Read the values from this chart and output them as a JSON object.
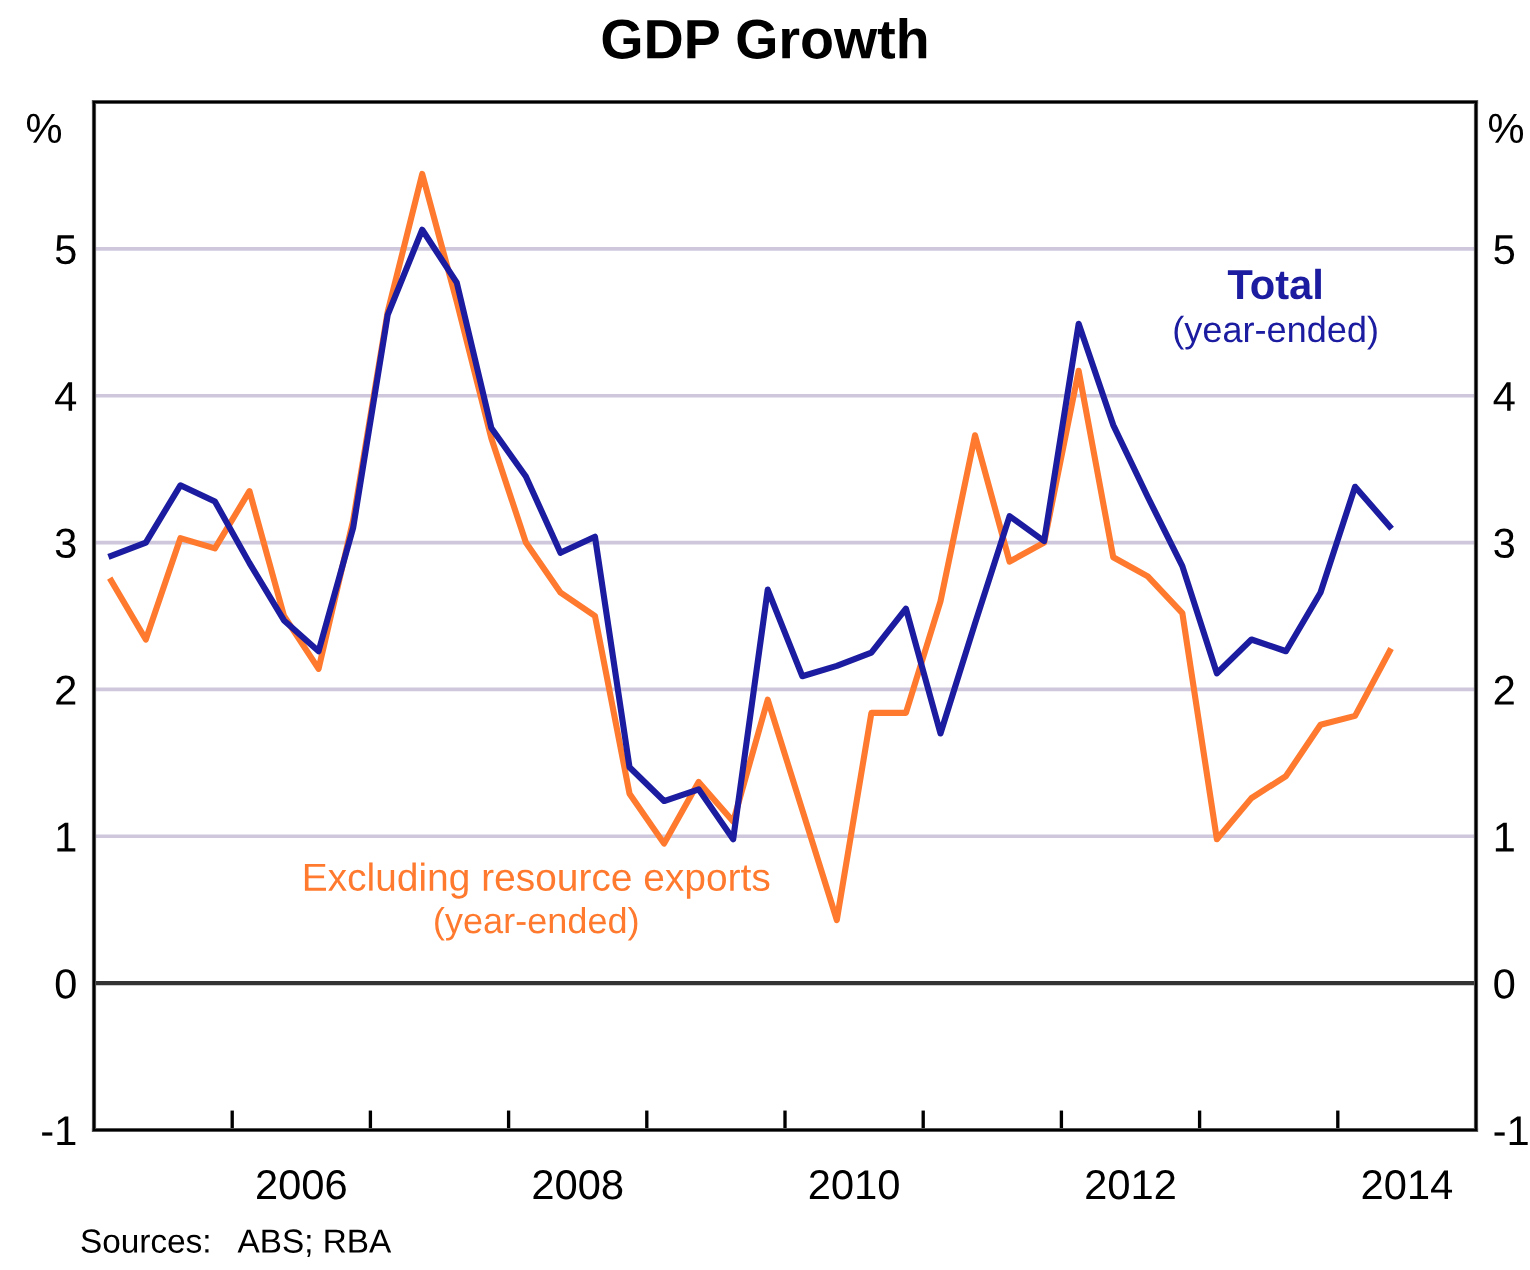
{
  "chart_data": {
    "type": "line",
    "title": "GDP Growth",
    "x": [
      2005.125,
      2005.375,
      2005.625,
      2005.875,
      2006.125,
      2006.375,
      2006.625,
      2006.875,
      2007.125,
      2007.375,
      2007.625,
      2007.875,
      2008.125,
      2008.375,
      2008.625,
      2008.875,
      2009.125,
      2009.375,
      2009.625,
      2009.875,
      2010.125,
      2010.375,
      2010.625,
      2010.875,
      2011.125,
      2011.375,
      2011.625,
      2011.875,
      2012.125,
      2012.375,
      2012.625,
      2012.875,
      2013.125,
      2013.375,
      2013.625,
      2013.875,
      2014.125,
      2014.375
    ],
    "series": [
      {
        "name": "Total\n(year-ended)",
        "color": "#1c1ca0",
        "values": [
          2.91,
          3.0,
          3.39,
          3.28,
          2.86,
          2.47,
          2.26,
          3.1,
          4.55,
          5.13,
          4.77,
          3.78,
          3.45,
          2.93,
          3.04,
          1.47,
          1.24,
          1.32,
          0.98,
          2.68,
          2.09,
          2.16,
          2.25,
          2.55,
          1.7,
          2.45,
          3.18,
          3.01,
          4.49,
          3.8,
          3.31,
          2.84,
          2.11,
          2.34,
          2.26,
          2.66,
          3.38,
          3.11
        ]
      },
      {
        "name": "Excluding resource exports\n(year-ended)",
        "color": "#ff7a2e",
        "values": [
          2.74,
          2.34,
          3.03,
          2.96,
          3.35,
          2.5,
          2.14,
          3.15,
          4.57,
          5.51,
          4.64,
          3.71,
          3.0,
          2.66,
          2.5,
          1.29,
          0.95,
          1.37,
          1.1,
          1.93,
          1.18,
          0.43,
          1.84,
          1.84,
          2.6,
          3.73,
          2.87,
          3.0,
          4.17,
          2.9,
          2.77,
          2.52,
          0.98,
          1.26,
          1.41,
          1.76,
          1.82,
          2.26
        ]
      }
    ],
    "xlim": [
      2005,
      2015
    ],
    "xticks": [
      {
        "value": 2005,
        "label": null
      },
      {
        "value": 2006,
        "label": null
      },
      {
        "value": 2007,
        "label": null
      },
      {
        "value": 2008,
        "label": null
      },
      {
        "value": 2009,
        "label": null
      },
      {
        "value": 2010,
        "label": null
      },
      {
        "value": 2011,
        "label": null
      },
      {
        "value": 2012,
        "label": null
      },
      {
        "value": 2013,
        "label": null
      },
      {
        "value": 2014,
        "label": null
      },
      {
        "value": 2015,
        "label": null
      },
      {
        "value": 2006.5,
        "label": "2006"
      },
      {
        "value": 2008.5,
        "label": "2008"
      },
      {
        "value": 2010.5,
        "label": "2010"
      },
      {
        "value": 2012.5,
        "label": "2012"
      },
      {
        "value": 2014.5,
        "label": "2014"
      }
    ],
    "ylim": [
      -1,
      6
    ],
    "yticks": [
      -1,
      0,
      1,
      2,
      3,
      4,
      5
    ],
    "y2lim": [
      -1,
      6
    ],
    "y2ticks": [
      -1,
      0,
      1,
      2,
      3,
      4,
      5
    ],
    "ylabel": "%",
    "y2label": "%",
    "grid": "y",
    "legend": false,
    "ref_lines": [
      {
        "axis": "y",
        "value": 0,
        "color": "#333333"
      }
    ],
    "annotations": [
      "Sources:   ABS; RBA"
    ]
  }
}
